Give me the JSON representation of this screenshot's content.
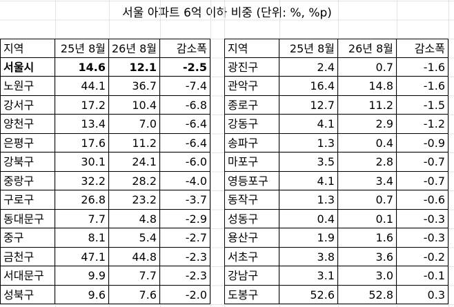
{
  "title": "서울 아파트 6억 이하 비중 (단위: %, %p)",
  "tables": [
    {
      "header": [
        "지역",
        "25년 8월",
        "26년 8월",
        "감소폭"
      ],
      "rows": [
        [
          "서울시",
          "14.6",
          "12.1",
          "-2.5"
        ],
        [
          "노원구",
          "44.1",
          "36.7",
          "-7.4"
        ],
        [
          "강서구",
          "17.2",
          "10.4",
          "-6.8"
        ],
        [
          "양천구",
          "13.4",
          "7.0",
          "-6.4"
        ],
        [
          "은평구",
          "17.6",
          "11.2",
          "-6.4"
        ],
        [
          "강북구",
          "30.1",
          "24.1",
          "-6.0"
        ],
        [
          "중랑구",
          "32.2",
          "28.2",
          "-4.0"
        ],
        [
          "구로구",
          "26.8",
          "23.2",
          "-3.7"
        ],
        [
          "동대문구",
          "7.7",
          "4.8",
          "-2.9"
        ],
        [
          "중구",
          "8.1",
          "5.4",
          "-2.7"
        ],
        [
          "금천구",
          "47.1",
          "44.8",
          "-2.3"
        ],
        [
          "서대문구",
          "9.9",
          "7.7",
          "-2.3"
        ],
        [
          "성북구",
          "9.6",
          "7.6",
          "-2.0"
        ]
      ]
    },
    {
      "header": [
        "지역",
        "25년 8월",
        "26년 8월",
        "감소폭"
      ],
      "rows": [
        [
          "광진구",
          "2.4",
          "0.7",
          "-1.6"
        ],
        [
          "관악구",
          "16.4",
          "14.8",
          "-1.6"
        ],
        [
          "종로구",
          "12.7",
          "11.2",
          "-1.5"
        ],
        [
          "강동구",
          "4.1",
          "2.9",
          "-1.2"
        ],
        [
          "송파구",
          "1.3",
          "0.4",
          "-0.9"
        ],
        [
          "마포구",
          "3.5",
          "2.8",
          "-0.7"
        ],
        [
          "영등포구",
          "4.1",
          "3.4",
          "-0.7"
        ],
        [
          "동작구",
          "1.3",
          "0.7",
          "-0.6"
        ],
        [
          "성동구",
          "0.4",
          "0.1",
          "-0.3"
        ],
        [
          "용산구",
          "1.9",
          "1.6",
          "-0.3"
        ],
        [
          "서초구",
          "3.8",
          "3.6",
          "-0.2"
        ],
        [
          "강남구",
          "3.1",
          "3.0",
          "-0.1"
        ],
        [
          "도봉구",
          "52.6",
          "52.8",
          "0.3"
        ]
      ]
    }
  ]
}
